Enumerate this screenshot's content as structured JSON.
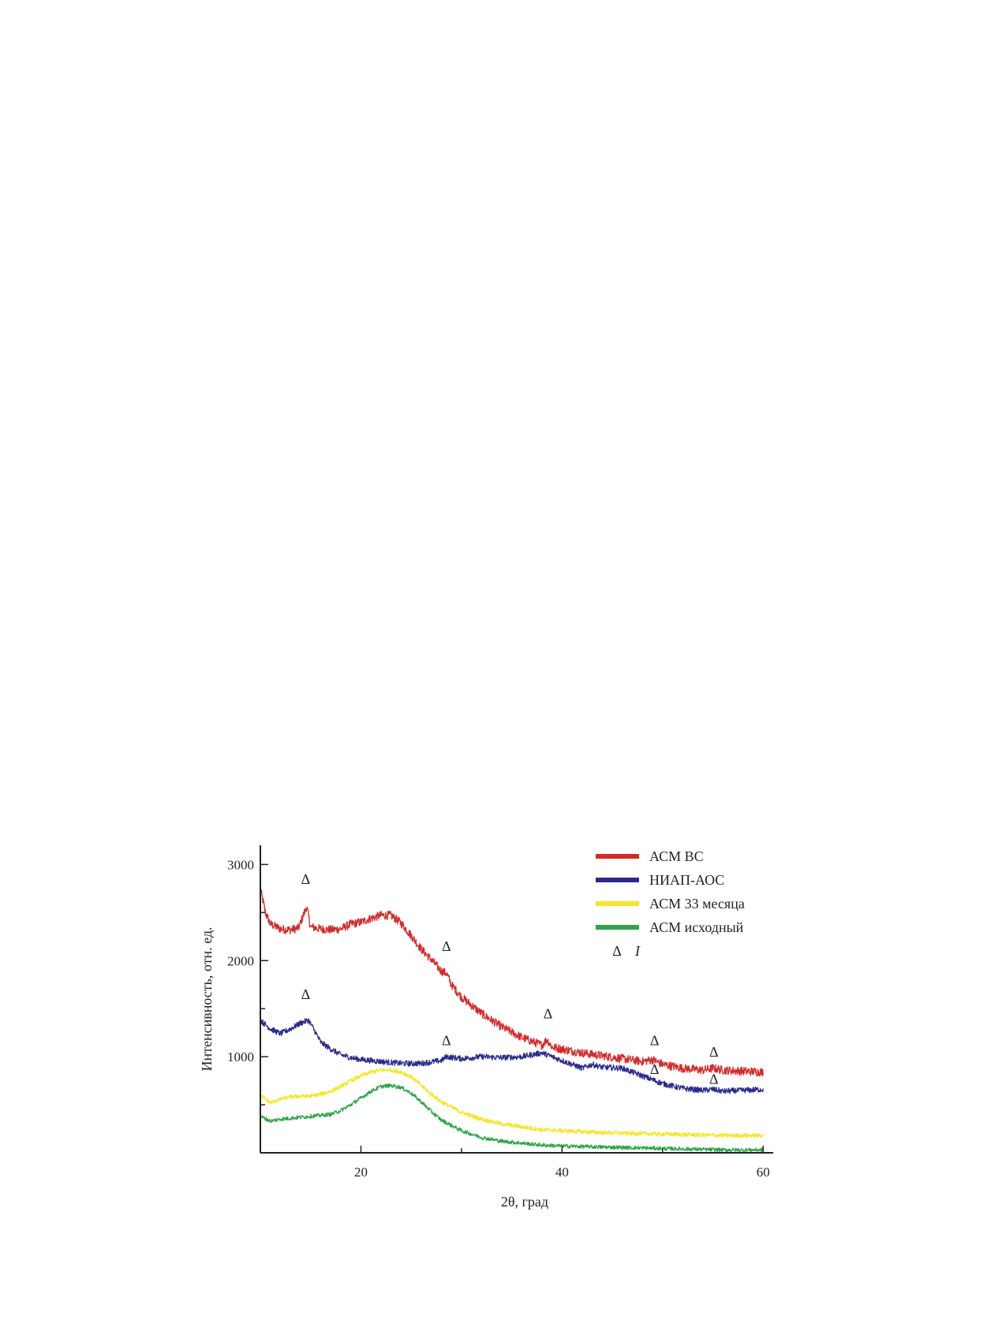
{
  "chart_data": {
    "type": "line",
    "xlabel": "2θ, град",
    "ylabel": "Интенсивность, отн. ед.",
    "xlim": [
      10,
      61
    ],
    "ylim": [
      0,
      3200
    ],
    "x_ticks": [
      20,
      40,
      60
    ],
    "y_ticks": [
      1000,
      2000,
      3000
    ],
    "legend_position": "top-right",
    "series": [
      {
        "name": "АСМ ВС",
        "color": "#d42a2a",
        "noise": 45,
        "x": [
          10,
          10.5,
          11,
          12,
          13,
          13.8,
          14.2,
          14.6,
          15,
          16,
          17,
          18,
          19,
          20,
          21,
          22,
          23,
          24,
          25,
          26,
          27,
          28,
          28.5,
          29,
          30,
          32,
          34,
          36,
          38,
          38.5,
          39,
          40,
          42,
          44,
          46,
          48,
          49,
          50,
          52,
          54,
          55,
          56,
          58,
          60
        ],
        "y": [
          2750,
          2500,
          2380,
          2330,
          2320,
          2340,
          2450,
          2560,
          2350,
          2330,
          2320,
          2330,
          2380,
          2400,
          2440,
          2470,
          2470,
          2390,
          2260,
          2120,
          2010,
          1890,
          1870,
          1750,
          1620,
          1450,
          1310,
          1200,
          1120,
          1180,
          1100,
          1080,
          1040,
          1010,
          980,
          950,
          970,
          920,
          880,
          860,
          880,
          860,
          850,
          840
        ]
      },
      {
        "name": "НИАП-АОС",
        "color": "#2b2a8c",
        "noise": 30,
        "x": [
          10,
          11,
          12,
          13,
          14,
          14.8,
          15.5,
          16,
          17,
          18,
          19,
          20,
          22,
          24,
          26,
          28,
          28.5,
          30,
          32,
          34,
          36,
          38,
          40,
          42,
          43,
          44,
          46,
          48,
          49,
          50,
          52,
          54,
          55,
          56,
          58,
          60
        ],
        "y": [
          1380,
          1290,
          1240,
          1290,
          1350,
          1380,
          1250,
          1150,
          1080,
          1020,
          990,
          970,
          950,
          930,
          930,
          960,
          1000,
          980,
          1000,
          990,
          1000,
          1040,
          960,
          880,
          920,
          890,
          880,
          800,
          760,
          720,
          670,
          650,
          660,
          640,
          650,
          660
        ]
      },
      {
        "name": "АСМ 33 месяца",
        "color": "#f5e62a",
        "noise": 22,
        "x": [
          10,
          11,
          12,
          13,
          14,
          15,
          16,
          17,
          18,
          19,
          20,
          21,
          22,
          23,
          24,
          25,
          26,
          27,
          28,
          30,
          32,
          34,
          36,
          38,
          40,
          44,
          48,
          52,
          56,
          60
        ],
        "y": [
          600,
          520,
          560,
          580,
          590,
          590,
          610,
          640,
          690,
          750,
          800,
          840,
          860,
          860,
          840,
          790,
          700,
          610,
          530,
          420,
          350,
          300,
          270,
          240,
          230,
          210,
          200,
          190,
          180,
          180
        ]
      },
      {
        "name": "АСМ исходный",
        "color": "#2ea44a",
        "noise": 20,
        "x": [
          10,
          11,
          12,
          13,
          14,
          15,
          16,
          17,
          18,
          19,
          20,
          21,
          22,
          23,
          24,
          25,
          26,
          27,
          28,
          30,
          32,
          34,
          36,
          38,
          40,
          44,
          48,
          52,
          56,
          60
        ],
        "y": [
          380,
          330,
          350,
          360,
          370,
          380,
          390,
          400,
          440,
          500,
          570,
          640,
          690,
          700,
          680,
          620,
          530,
          430,
          340,
          230,
          160,
          120,
          100,
          80,
          70,
          60,
          50,
          40,
          30,
          30
        ]
      }
    ],
    "peak_markers": [
      {
        "symbol": "Δ",
        "x": 14.5,
        "y": 2800
      },
      {
        "symbol": "Δ",
        "x": 28.5,
        "y": 2100
      },
      {
        "symbol": "Δ",
        "x": 38.6,
        "y": 1400
      },
      {
        "symbol": "Δ",
        "x": 49.2,
        "y": 1120
      },
      {
        "symbol": "Δ",
        "x": 55.1,
        "y": 1000
      },
      {
        "symbol": "Δ",
        "x": 14.5,
        "y": 1600
      },
      {
        "symbol": "Δ",
        "x": 28.5,
        "y": 1120
      },
      {
        "symbol": "Δ",
        "x": 49.2,
        "y": 820
      },
      {
        "symbol": "Δ",
        "x": 55.1,
        "y": 720
      }
    ],
    "legend_extra": {
      "symbol": "Δ",
      "label": "I"
    }
  }
}
